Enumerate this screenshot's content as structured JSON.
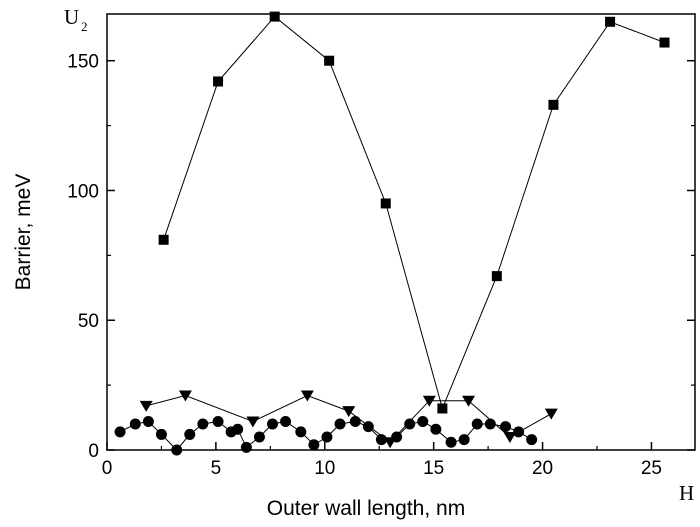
{
  "chart_data": {
    "type": "line",
    "xlabel": "Outer wall length, nm",
    "ylabel": "Barrier, meV",
    "xlim": [
      0,
      27
    ],
    "ylim": [
      0,
      168
    ],
    "xticks": [
      "0",
      "5",
      "10",
      "15",
      "20",
      "25"
    ],
    "yticks": [
      "0",
      "50",
      "100",
      "150"
    ],
    "grid": false,
    "legend": "none",
    "top_right_label": {
      "main": "U",
      "sub": "2"
    },
    "bottom_right_label": "H",
    "series": [
      {
        "marker": "square",
        "color": "#000000",
        "x": [
          2.6,
          5.1,
          7.7,
          10.2,
          12.8,
          15.4,
          17.9,
          20.5,
          23.1,
          25.6
        ],
        "y": [
          81,
          142,
          167,
          150,
          95,
          16,
          67,
          133,
          165,
          157
        ]
      },
      {
        "marker": "triangle-down",
        "color": "#000000",
        "x": [
          1.8,
          3.6,
          6.7,
          9.2,
          11.1,
          13.0,
          14.8,
          16.6,
          18.5,
          20.4
        ],
        "y": [
          17,
          21,
          11,
          21,
          15,
          3,
          19,
          19,
          5,
          14
        ]
      },
      {
        "marker": "circle",
        "color": "#000000",
        "x": [
          0.6,
          1.3,
          1.9,
          2.5,
          3.2,
          3.8,
          4.4,
          5.1,
          5.7,
          6.0,
          6.4,
          7.0,
          7.6,
          8.2,
          8.9,
          9.5,
          10.1,
          10.7,
          11.4,
          12.0,
          12.6,
          13.3,
          13.9,
          14.5,
          15.1,
          15.8,
          16.4,
          17.0,
          17.6,
          18.3,
          18.9,
          19.5
        ],
        "y": [
          7,
          10,
          11,
          6,
          0,
          6,
          10,
          11,
          7,
          8,
          1,
          5,
          10,
          11,
          7,
          2,
          5,
          10,
          11,
          9,
          4,
          5,
          10,
          11,
          8,
          3,
          4,
          10,
          10,
          9,
          7,
          4
        ]
      }
    ]
  }
}
